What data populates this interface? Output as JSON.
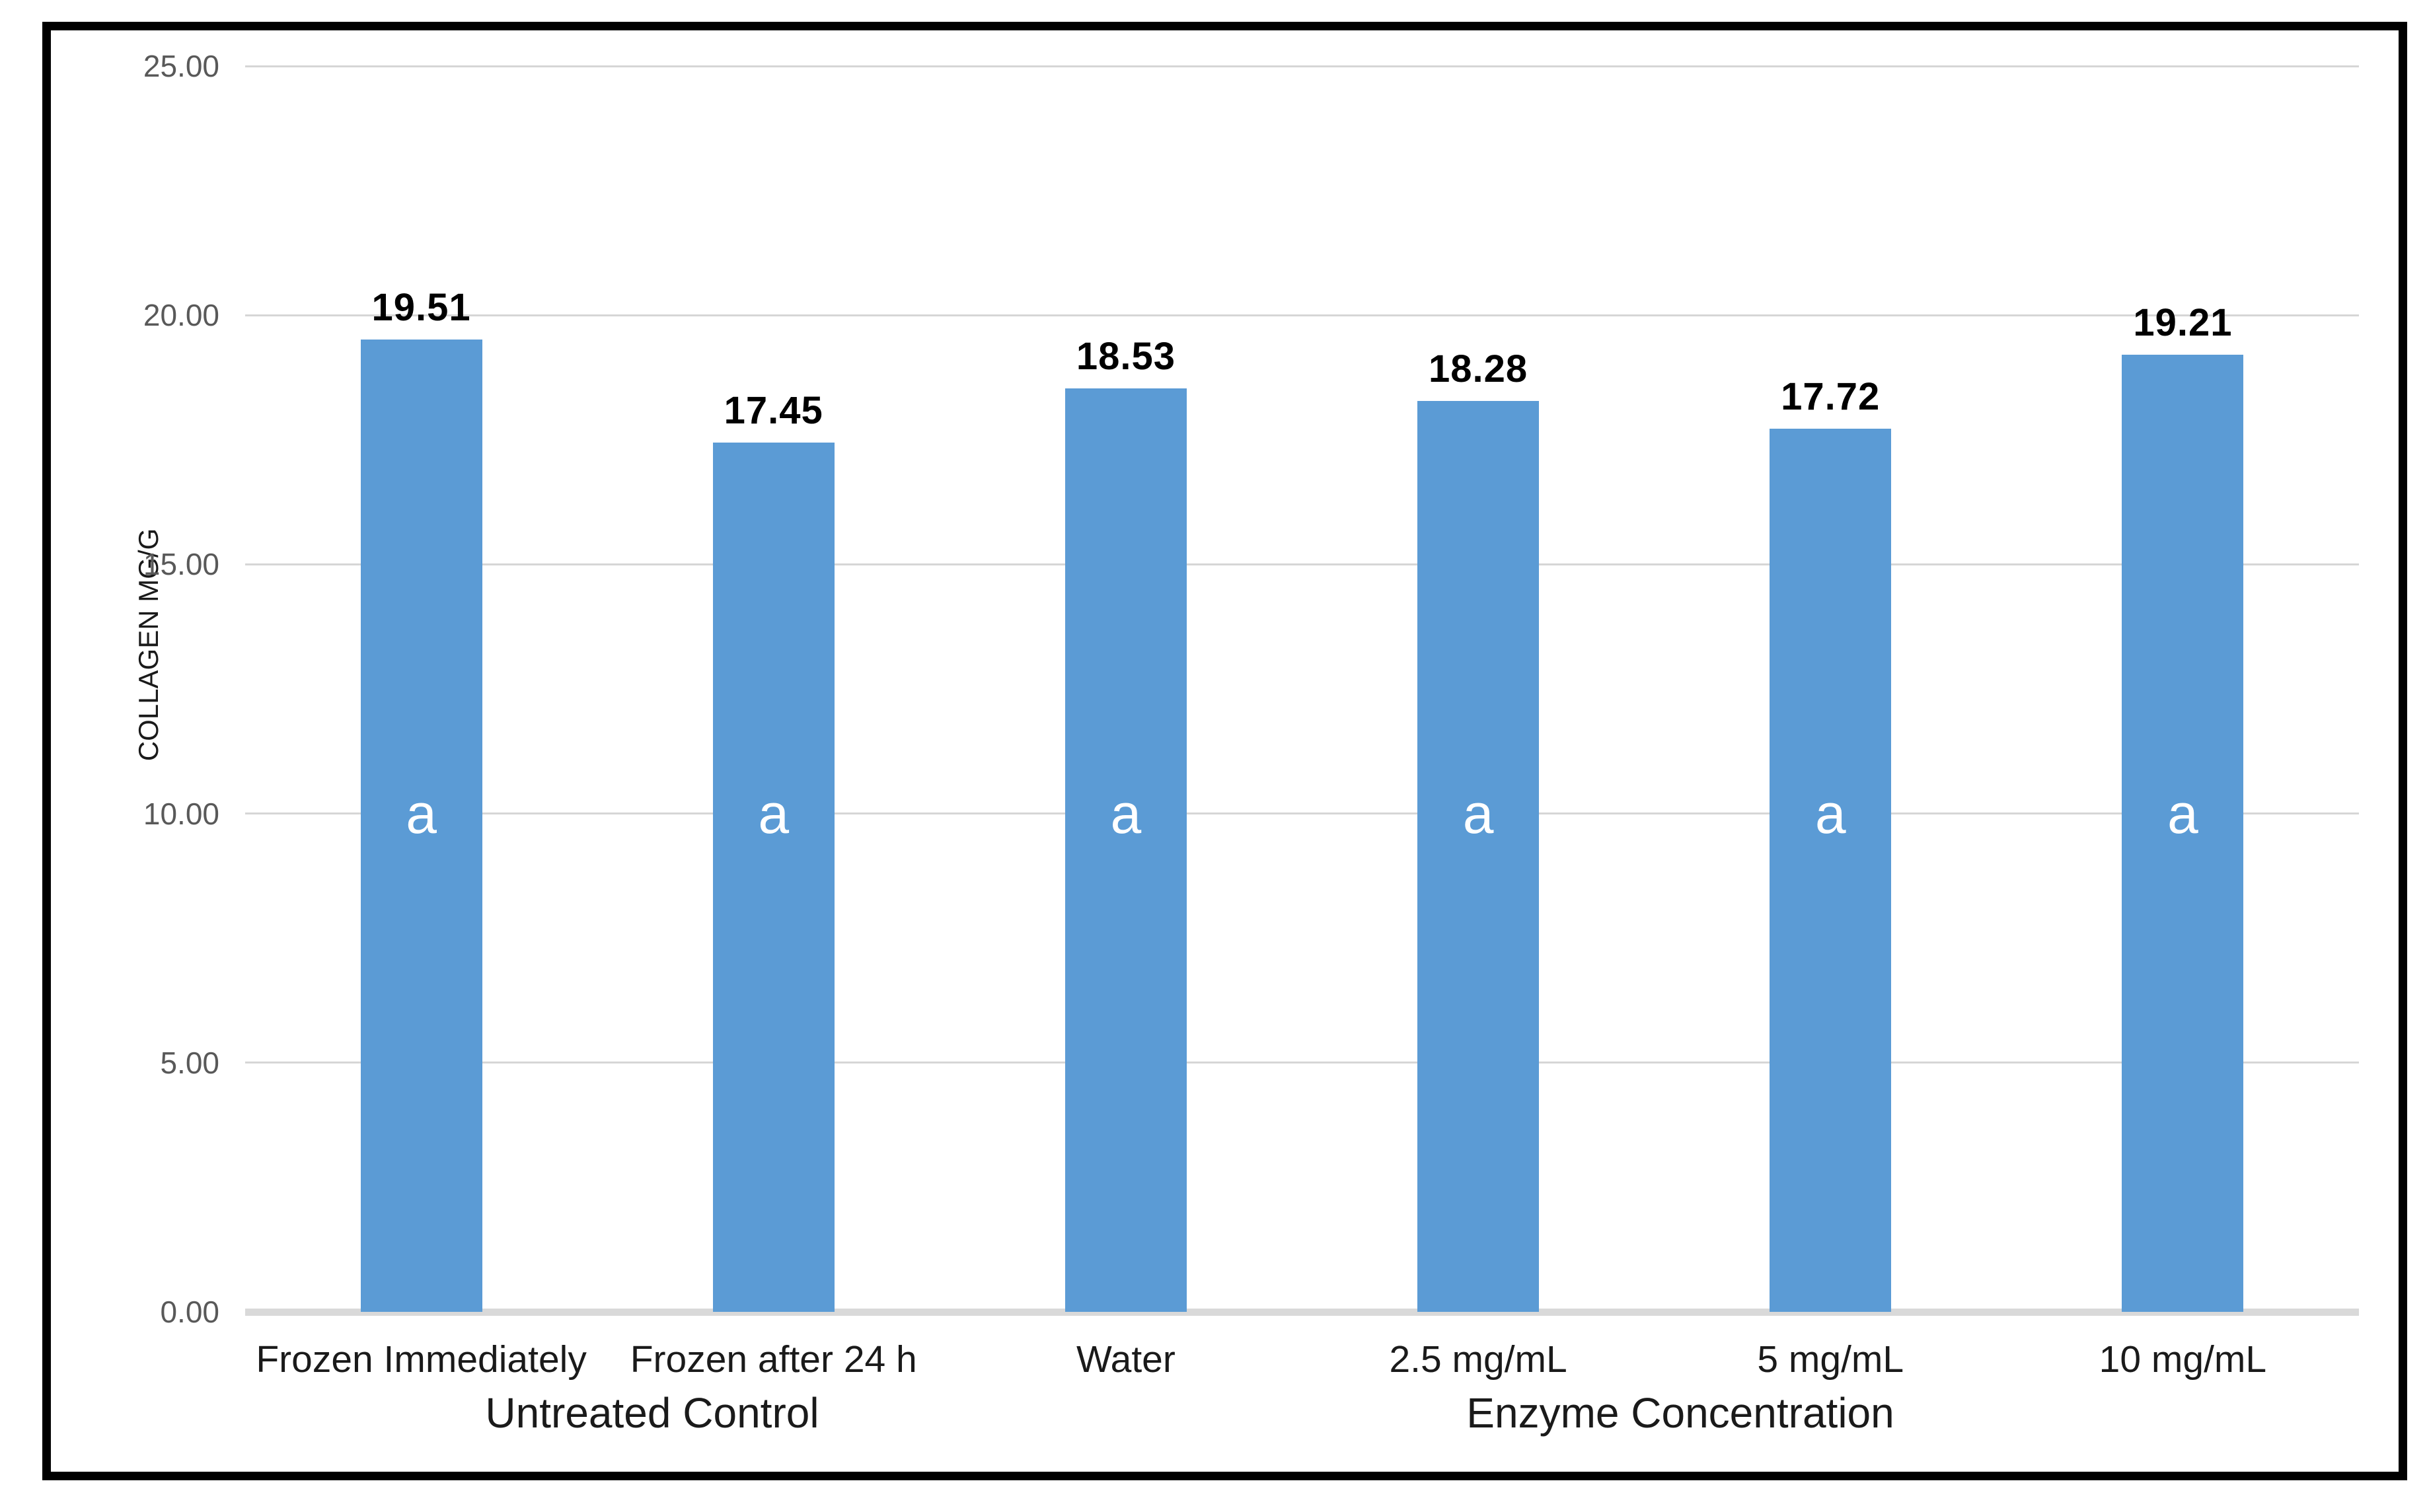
{
  "chart_data": {
    "type": "bar",
    "title": "",
    "ylabel": "COLLAGEN MG/G",
    "xlabel": "",
    "ylim": [
      0,
      25
    ],
    "y_tick_step": 5,
    "y_tick_labels": [
      "0.00",
      "5.00",
      "10.00",
      "15.00",
      "20.00",
      "25.00"
    ],
    "grid": true,
    "legend": "none",
    "categories": [
      "Frozen Immediately",
      "Frozen after 24 h",
      "Water",
      "2.5 mg/mL",
      "5 mg/mL",
      "10 mg/mL"
    ],
    "values": [
      19.51,
      17.45,
      18.53,
      18.28,
      17.72,
      19.21
    ],
    "data_labels": [
      "19.51",
      "17.45",
      "18.53",
      "18.28",
      "17.72",
      "19.21"
    ],
    "significance_letters": [
      "a",
      "a",
      "a",
      "a",
      "a",
      "a"
    ],
    "significance_letter_y_value": 10,
    "category_groups": [
      {
        "label": "Untreated Control",
        "start": 0,
        "end": 1
      },
      {
        "label": "Enzyme Concentration",
        "start": 2,
        "end": 5
      }
    ],
    "colors": {
      "bar": "#5B9BD5",
      "gridline": "#D6D6D6",
      "axis_line": "#D9D9D9",
      "y_tick_label": "#595959",
      "text": "#1A1A1A",
      "data_label": "#000000",
      "letter_label": "#FFFFFF",
      "frame_border": "#000000",
      "background": "#FFFFFF"
    }
  }
}
